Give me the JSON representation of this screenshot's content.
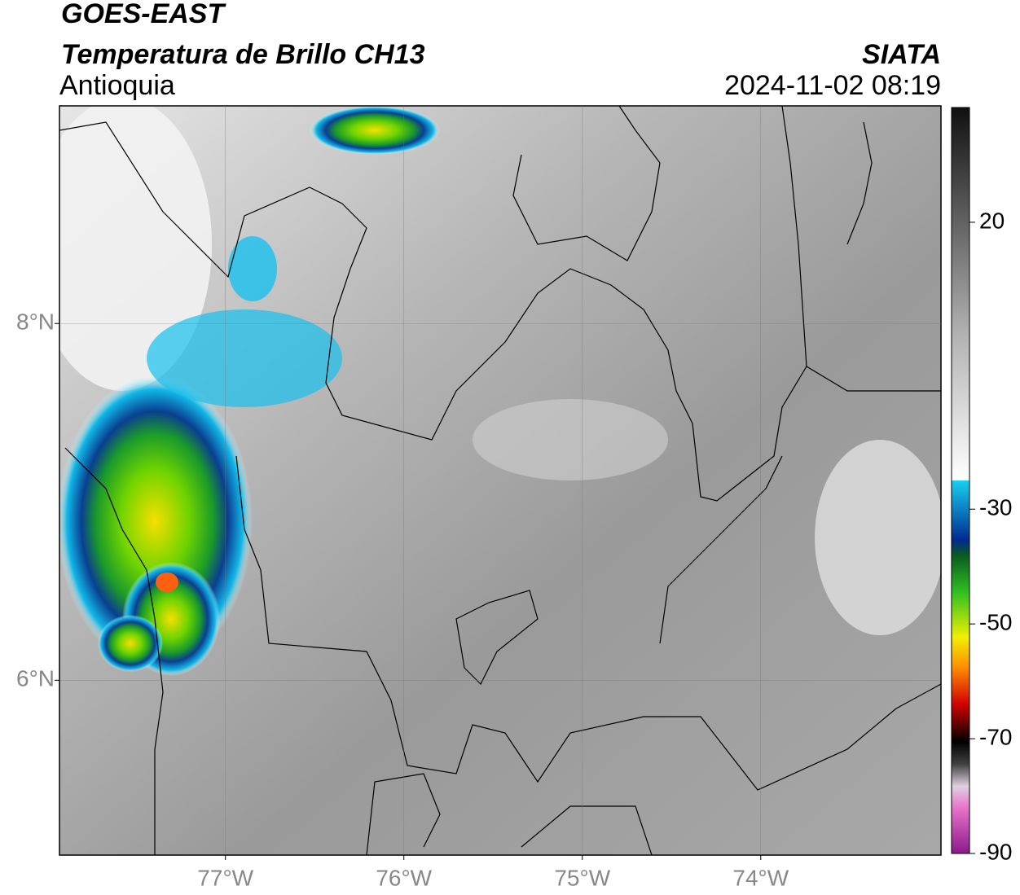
{
  "header": {
    "title": "GOES-EAST",
    "subtitle": "Temperatura de Brillo CH13",
    "region": "Antioquia",
    "source": "SIATA",
    "datetime": "2024-11-02 08:19"
  },
  "map": {
    "xlim": [
      -77.93,
      -72.99
    ],
    "ylim": [
      5.02,
      9.22
    ],
    "xticks": [
      {
        "value": -77,
        "label": "77°W"
      },
      {
        "value": -76,
        "label": "76°W"
      },
      {
        "value": -75,
        "label": "75°W"
      },
      {
        "value": -74,
        "label": "74°W"
      }
    ],
    "yticks": [
      {
        "value": 8,
        "label": "8°N"
      },
      {
        "value": 6,
        "label": "6°N"
      }
    ],
    "grid": true
  },
  "colorbar": {
    "lim": [
      -90,
      40
    ],
    "ticks": [
      20,
      -30,
      -50,
      -70,
      -90
    ]
  }
}
